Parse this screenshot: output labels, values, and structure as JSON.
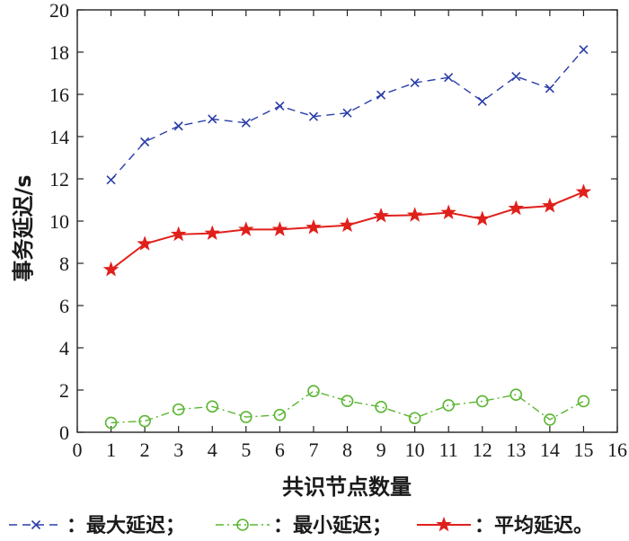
{
  "chart_data": {
    "type": "line",
    "title": "",
    "xlabel": "共识节点数量",
    "ylabel": "事务延迟/s",
    "xlim": [
      0,
      16
    ],
    "ylim": [
      0,
      20
    ],
    "xticks": [
      0,
      1,
      2,
      3,
      4,
      5,
      6,
      7,
      8,
      9,
      10,
      11,
      12,
      13,
      14,
      15,
      16
    ],
    "yticks": [
      0,
      2,
      4,
      6,
      8,
      10,
      12,
      14,
      16,
      18,
      20
    ],
    "grid": false,
    "legend_position": "bottom",
    "x": [
      1,
      2,
      3,
      4,
      5,
      6,
      7,
      8,
      9,
      10,
      11,
      12,
      13,
      14,
      15
    ],
    "series": [
      {
        "name": "最大延迟",
        "legend_label": "：最大延迟；",
        "values": [
          11.95,
          13.75,
          14.5,
          14.83,
          14.65,
          15.45,
          14.95,
          15.12,
          15.97,
          16.55,
          16.8,
          15.67,
          16.85,
          16.28,
          18.12
        ],
        "color": "#2b3ea8",
        "line_style": "dashed",
        "marker": "x"
      },
      {
        "name": "最小延迟",
        "legend_label": "：最小延迟；",
        "values": [
          0.45,
          0.53,
          1.08,
          1.22,
          0.72,
          0.82,
          1.95,
          1.48,
          1.2,
          0.67,
          1.28,
          1.47,
          1.78,
          0.6,
          1.47
        ],
        "color": "#5ab632",
        "line_style": "dashdot",
        "marker": "circle"
      },
      {
        "name": "平均延迟",
        "legend_label": "：平均延迟。",
        "values": [
          7.7,
          8.92,
          9.37,
          9.42,
          9.6,
          9.6,
          9.7,
          9.8,
          10.25,
          10.28,
          10.4,
          10.1,
          10.6,
          10.72,
          11.38
        ],
        "color": "#e0201b",
        "line_style": "solid",
        "marker": "star"
      }
    ]
  }
}
